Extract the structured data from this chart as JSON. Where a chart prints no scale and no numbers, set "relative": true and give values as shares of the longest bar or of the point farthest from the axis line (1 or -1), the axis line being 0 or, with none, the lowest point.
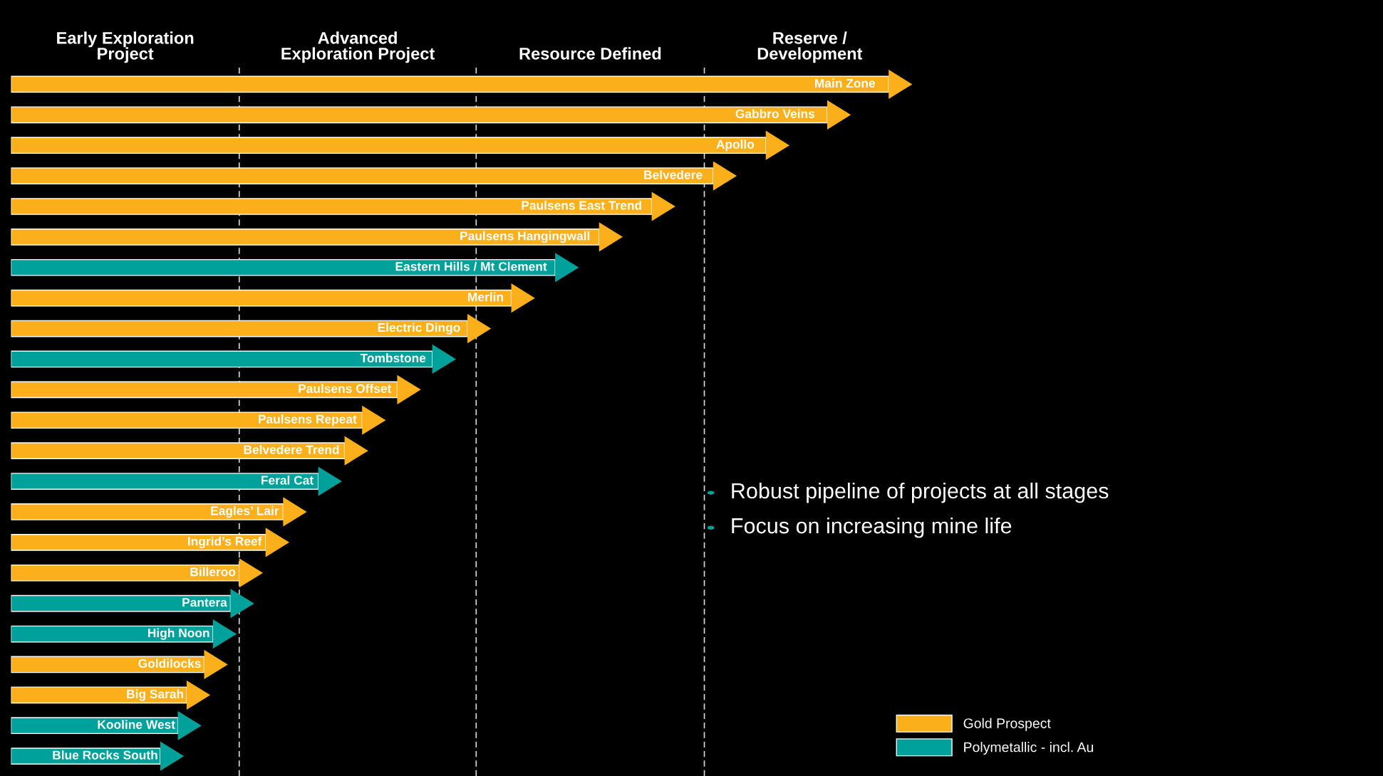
{
  "chart_data": {
    "type": "bar",
    "orientation": "horizontal",
    "relative": true,
    "tick_labels": false,
    "legend": "bottom right",
    "categories": [
      "Main Zone",
      "Gabbro Veins",
      "Apollo",
      "Belvedere",
      "Paulsens East Trend",
      "Paulsens Hangingwall",
      "Eastern Hills / Mt Clement",
      "Merlin",
      "Electric Dingo",
      "Tombstone",
      "Paulsens Offset",
      "Paulsens Repeat",
      "Belvedere Trend",
      "Feral Cat",
      "Eagles’ Lair",
      "Ingrid’s Reef",
      "Billeroo",
      "Pantera",
      "High Noon",
      "Goldilocks",
      "Big Sarah",
      "Kooline West",
      "Blue Rocks South"
    ],
    "series": [
      {
        "name": "Gold Prospect",
        "color": "#fbb01b",
        "values": [
          1.0,
          0.93,
          0.86,
          0.8,
          0.73,
          0.67,
          null,
          0.57,
          0.52,
          null,
          0.44,
          0.4,
          0.38,
          null,
          0.31,
          0.29,
          0.26,
          null,
          null,
          0.22,
          0.2,
          null,
          null
        ]
      },
      {
        "name": "Polymetallic - incl. Au",
        "color": "#00a19a",
        "values": [
          null,
          null,
          null,
          null,
          null,
          null,
          0.62,
          null,
          null,
          0.48,
          null,
          null,
          null,
          0.35,
          null,
          null,
          null,
          0.25,
          0.23,
          null,
          null,
          0.19,
          0.17
        ]
      }
    ],
    "ref_lines": [
      {
        "axis": "x",
        "value": 0.26,
        "line_style": "dashed",
        "color": "#d9d9d9"
      },
      {
        "axis": "x",
        "value": 0.53,
        "line_style": "dashed",
        "color": "#d9d9d9"
      },
      {
        "axis": "x",
        "value": 0.79,
        "line_style": "dashed",
        "color": "#d9d9d9"
      }
    ],
    "annotations": [
      "Early Exploration\nProject",
      "Advanced\nExploration Project",
      "Resource Defined",
      "Reserve /\nDevelopment",
      "Robust pipeline of projects at all stages",
      "Focus on increasing mine life"
    ]
  }
}
